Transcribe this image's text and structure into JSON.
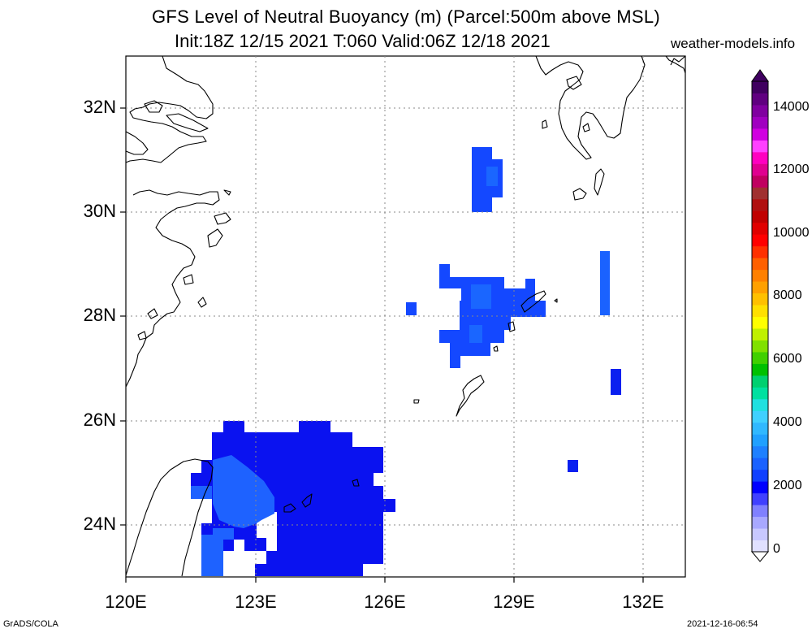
{
  "title": {
    "line1": "GFS Level of Neutral Buoyancy (m) (Parcel:500m above MSL)",
    "line2": "Init:18Z 12/15 2021 T:060 Valid:06Z 12/18 2021",
    "site": "weather-models.info"
  },
  "axes": {
    "lat_labels": [
      "32N",
      "30N",
      "28N",
      "26N",
      "24N"
    ],
    "lon_labels": [
      "120E",
      "123E",
      "126E",
      "129E",
      "132E"
    ]
  },
  "colorbar": {
    "labels": [
      "14000",
      "12000",
      "10000",
      "8000",
      "6000",
      "4000",
      "2000",
      "0"
    ],
    "colors": [
      "#e0e0ff",
      "#c8c8ff",
      "#a8a8ff",
      "#8080ff",
      "#4040ff",
      "#0000ff",
      "#1040ff",
      "#1a62ff",
      "#1e80ff",
      "#20a0ff",
      "#30b8ff",
      "#40d0ff",
      "#20e0e0",
      "#00e0a0",
      "#00d070",
      "#00c000",
      "#40d000",
      "#80e000",
      "#c0f000",
      "#ffff00",
      "#ffe000",
      "#ffc000",
      "#ffa000",
      "#ff8000",
      "#ff6000",
      "#ff3000",
      "#ff0000",
      "#e00000",
      "#c00000",
      "#b01010",
      "#a03030",
      "#c00060",
      "#e00090",
      "#ff00c0",
      "#ff40ff",
      "#d000e0",
      "#a000c0",
      "#8000a0",
      "#600080",
      "#400060"
    ]
  },
  "footer": {
    "left": "GrADS/COLA",
    "right": "2021-12-16-06:54"
  }
}
